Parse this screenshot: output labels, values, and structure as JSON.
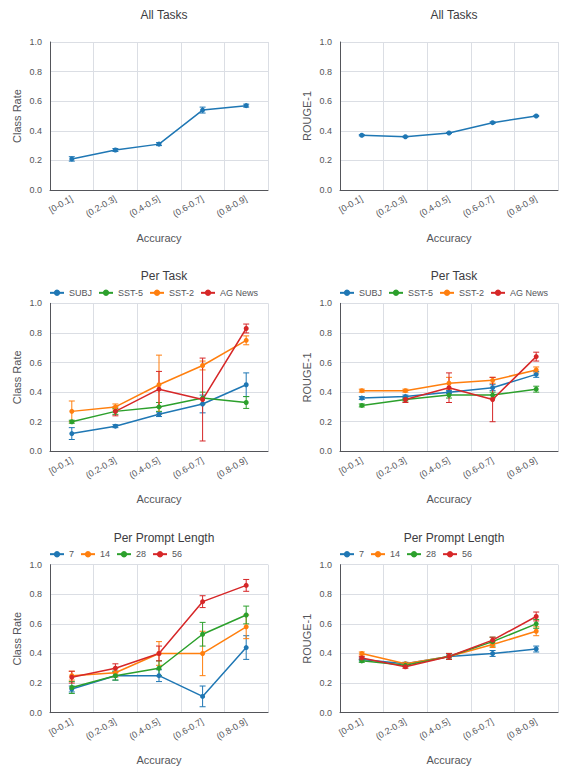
{
  "chart_data": [
    {
      "type": "line",
      "title": "All Tasks",
      "x_label": "Accuracy",
      "y_label": "Class Rate",
      "categories": [
        "[0-0.1]",
        "(0.2-0.3]",
        "(0.4-0.5]",
        "(0.6-0.7]",
        "(0.8-0.9]"
      ],
      "series": [
        {
          "color": "#1f77b4",
          "marker": "circle",
          "values": [
            0.21,
            0.27,
            0.31,
            0.54,
            0.57
          ],
          "errors": [
            0.015,
            0.01,
            0.01,
            0.02,
            0.01
          ]
        }
      ],
      "ylim": [
        0,
        1
      ],
      "yticks": [
        {
          "value": 0,
          "label": "0.0"
        },
        0.2,
        0.4,
        0.6,
        0.8,
        {
          "value": 1,
          "label": "1.0"
        }
      ],
      "grid": true
    },
    {
      "type": "line",
      "title": "All Tasks",
      "x_label": "Accuracy",
      "y_label": "ROUGE-1",
      "categories": [
        "[0-0.1]",
        "(0.2-0.3]",
        "(0.4-0.5]",
        "(0.6-0.7]",
        "(0.8-0.9]"
      ],
      "series": [
        {
          "color": "#1f77b4",
          "marker": "circle",
          "values": [
            0.37,
            0.36,
            0.385,
            0.455,
            0.5
          ],
          "errors": [
            0.004,
            0.003,
            0.003,
            0.005,
            0.004
          ]
        }
      ],
      "ylim": [
        0,
        1
      ],
      "yticks": [
        {
          "value": 0,
          "label": "0.0"
        },
        0.2,
        0.4,
        0.6,
        0.8,
        {
          "value": 1,
          "label": "1.0"
        }
      ],
      "grid": true
    },
    {
      "type": "line",
      "title": "Per Task",
      "x_label": "Accuracy",
      "y_label": "Class Rate",
      "categories": [
        "[0-0.1]",
        "(0.2-0.3]",
        "(0.4-0.5]",
        "(0.6-0.7]",
        "(0.8-0.9]"
      ],
      "series": [
        {
          "name": "SUBJ",
          "color": "#1f77b4",
          "marker": "circle",
          "values": [
            0.12,
            0.17,
            0.25,
            0.32,
            0.45
          ],
          "errors": [
            0.04,
            0.01,
            0.015,
            0.06,
            0.08
          ]
        },
        {
          "name": "SST-5",
          "color": "#2ca02c",
          "marker": "circle",
          "values": [
            0.2,
            0.27,
            0.3,
            0.36,
            0.33
          ],
          "errors": [
            0.01,
            0.02,
            0.03,
            0.04,
            0.04
          ]
        },
        {
          "name": "SST-2",
          "color": "#ff7f0e",
          "marker": "circle",
          "values": [
            0.27,
            0.3,
            0.45,
            0.58,
            0.75
          ],
          "errors": [
            0.07,
            0.02,
            0.2,
            0.03,
            0.03
          ]
        },
        {
          "name": "AG News",
          "color": "#d62728",
          "marker": "circle",
          "values": [
            null,
            0.27,
            0.42,
            0.35,
            0.83
          ],
          "errors": [
            null,
            0.03,
            0.12,
            0.28,
            0.03
          ]
        }
      ],
      "ylim": [
        0,
        1
      ],
      "yticks": [
        {
          "value": 0,
          "label": "0.0"
        },
        0.2,
        0.4,
        0.6,
        0.8,
        {
          "value": 1,
          "label": "1.0"
        }
      ],
      "grid": true,
      "legend": "upper left"
    },
    {
      "type": "line",
      "title": "Per Task",
      "x_label": "Accuracy",
      "y_label": "ROUGE-1",
      "categories": [
        "[0-0.1]",
        "(0.2-0.3]",
        "(0.4-0.5]",
        "(0.6-0.7]",
        "(0.8-0.9]"
      ],
      "series": [
        {
          "name": "SUBJ",
          "color": "#1f77b4",
          "marker": "circle",
          "values": [
            0.36,
            0.37,
            0.4,
            0.43,
            0.52
          ],
          "errors": [
            0.01,
            0.01,
            0.01,
            0.02,
            0.02
          ]
        },
        {
          "name": "SST-5",
          "color": "#2ca02c",
          "marker": "circle",
          "values": [
            0.31,
            0.35,
            0.38,
            0.38,
            0.42
          ],
          "errors": [
            0.01,
            0.01,
            0.02,
            0.02,
            0.02
          ]
        },
        {
          "name": "SST-2",
          "color": "#ff7f0e",
          "marker": "circle",
          "values": [
            0.41,
            0.41,
            0.46,
            0.48,
            0.55
          ],
          "errors": [
            0.01,
            0.01,
            0.04,
            0.02,
            0.02
          ]
        },
        {
          "name": "AG News",
          "color": "#d62728",
          "marker": "circle",
          "values": [
            null,
            0.35,
            0.43,
            0.35,
            0.64
          ],
          "errors": [
            null,
            0.02,
            0.1,
            0.15,
            0.03
          ]
        }
      ],
      "ylim": [
        0,
        1
      ],
      "yticks": [
        {
          "value": 0,
          "label": "0.0"
        },
        0.2,
        0.4,
        0.6,
        0.8,
        {
          "value": 1,
          "label": "1.0"
        }
      ],
      "grid": true,
      "legend": "upper left"
    },
    {
      "type": "line",
      "title": "Per Prompt Length",
      "x_label": "Accuracy",
      "y_label": "Class Rate",
      "categories": [
        "[0-0.1]",
        "(0.2-0.3]",
        "(0.4-0.5]",
        "(0.6-0.7]",
        "(0.8-0.9]"
      ],
      "series": [
        {
          "name": "7",
          "color": "#1f77b4",
          "marker": "circle",
          "values": [
            0.16,
            0.25,
            0.25,
            0.11,
            0.44
          ],
          "errors": [
            0.02,
            0.03,
            0.04,
            0.07,
            0.08
          ]
        },
        {
          "name": "14",
          "color": "#ff7f0e",
          "marker": "circle",
          "values": [
            0.25,
            0.27,
            0.4,
            0.4,
            0.58
          ],
          "errors": [
            0.03,
            0.03,
            0.08,
            0.15,
            0.08
          ]
        },
        {
          "name": "28",
          "color": "#2ca02c",
          "marker": "circle",
          "values": [
            0.17,
            0.25,
            0.3,
            0.53,
            0.66
          ],
          "errors": [
            0.04,
            0.03,
            0.05,
            0.08,
            0.06
          ]
        },
        {
          "name": "56",
          "color": "#d62728",
          "marker": "circle",
          "values": [
            0.24,
            0.3,
            0.4,
            0.75,
            0.86
          ],
          "errors": [
            0.04,
            0.03,
            0.05,
            0.04,
            0.04
          ]
        }
      ],
      "ylim": [
        0,
        1
      ],
      "yticks": [
        {
          "value": 0,
          "label": "0.0"
        },
        0.2,
        0.4,
        0.6,
        0.8,
        {
          "value": 1,
          "label": "1.0"
        }
      ],
      "grid": true,
      "legend": "upper left"
    },
    {
      "type": "line",
      "title": "Per Prompt Length",
      "x_label": "Accuracy",
      "y_label": "ROUGE-1",
      "categories": [
        "[0-0.1]",
        "(0.2-0.3]",
        "(0.4-0.5]",
        "(0.6-0.7]",
        "(0.8-0.9]"
      ],
      "series": [
        {
          "name": "7",
          "color": "#1f77b4",
          "marker": "circle",
          "values": [
            0.36,
            0.33,
            0.38,
            0.4,
            0.43
          ],
          "errors": [
            0.01,
            0.01,
            0.01,
            0.02,
            0.02
          ]
        },
        {
          "name": "14",
          "color": "#ff7f0e",
          "marker": "circle",
          "values": [
            0.4,
            0.33,
            0.38,
            0.46,
            0.55
          ],
          "errors": [
            0.01,
            0.01,
            0.02,
            0.02,
            0.03
          ]
        },
        {
          "name": "28",
          "color": "#2ca02c",
          "marker": "circle",
          "values": [
            0.35,
            0.32,
            0.38,
            0.48,
            0.6
          ],
          "errors": [
            0.01,
            0.01,
            0.02,
            0.03,
            0.03
          ]
        },
        {
          "name": "56",
          "color": "#d62728",
          "marker": "circle",
          "values": [
            0.37,
            0.31,
            0.38,
            0.49,
            0.65
          ],
          "errors": [
            0.01,
            0.01,
            0.02,
            0.02,
            0.03
          ]
        }
      ],
      "ylim": [
        0,
        1
      ],
      "yticks": [
        {
          "value": 0,
          "label": "0.0"
        },
        0.2,
        0.4,
        0.6,
        0.8,
        {
          "value": 1,
          "label": "1.0"
        }
      ],
      "grid": true,
      "legend": "upper left"
    }
  ]
}
